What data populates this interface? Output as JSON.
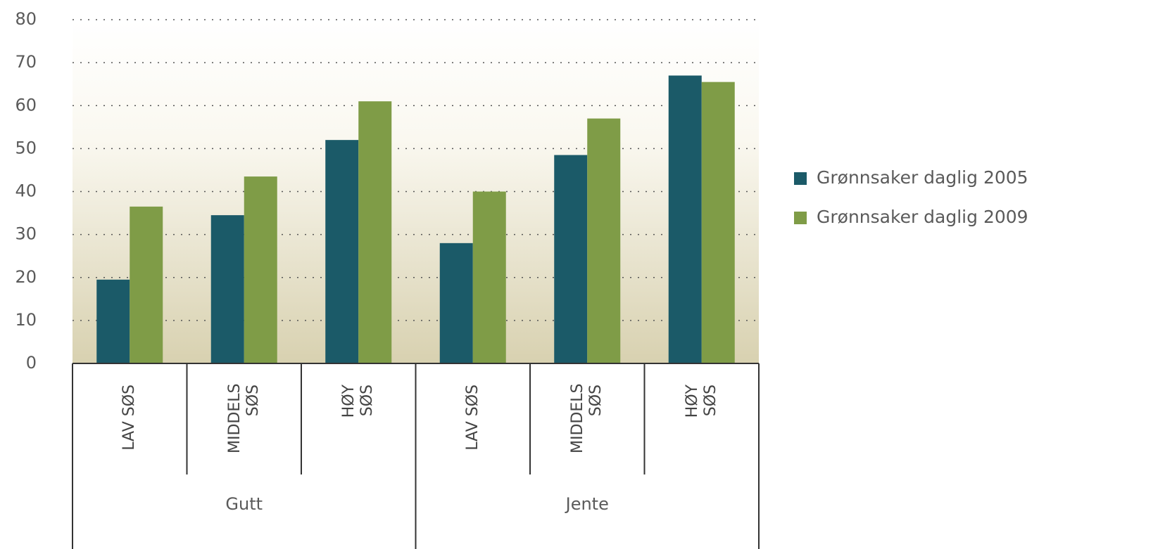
{
  "chart_data": {
    "type": "bar",
    "categories": [
      "LAV SØS",
      "MIDDELS SØS",
      "HØY SØS",
      "LAV SØS",
      "MIDDELS SØS",
      "HØY SØS"
    ],
    "groups": [
      "Gutt",
      "Jente"
    ],
    "series": [
      {
        "name": "Grønnsaker daglig 2005",
        "color": "#1b5a68",
        "values": [
          19.5,
          34.5,
          52,
          28,
          48.5,
          67
        ]
      },
      {
        "name": "Grønnsaker daglig 2009",
        "color": "#7f9c47",
        "values": [
          36.5,
          43.5,
          61,
          40,
          57,
          65.5
        ]
      }
    ],
    "ylim": [
      0,
      80
    ],
    "yticks": [
      0,
      10,
      20,
      30,
      40,
      50,
      60,
      70,
      80
    ],
    "grid": true,
    "legend": "right"
  }
}
